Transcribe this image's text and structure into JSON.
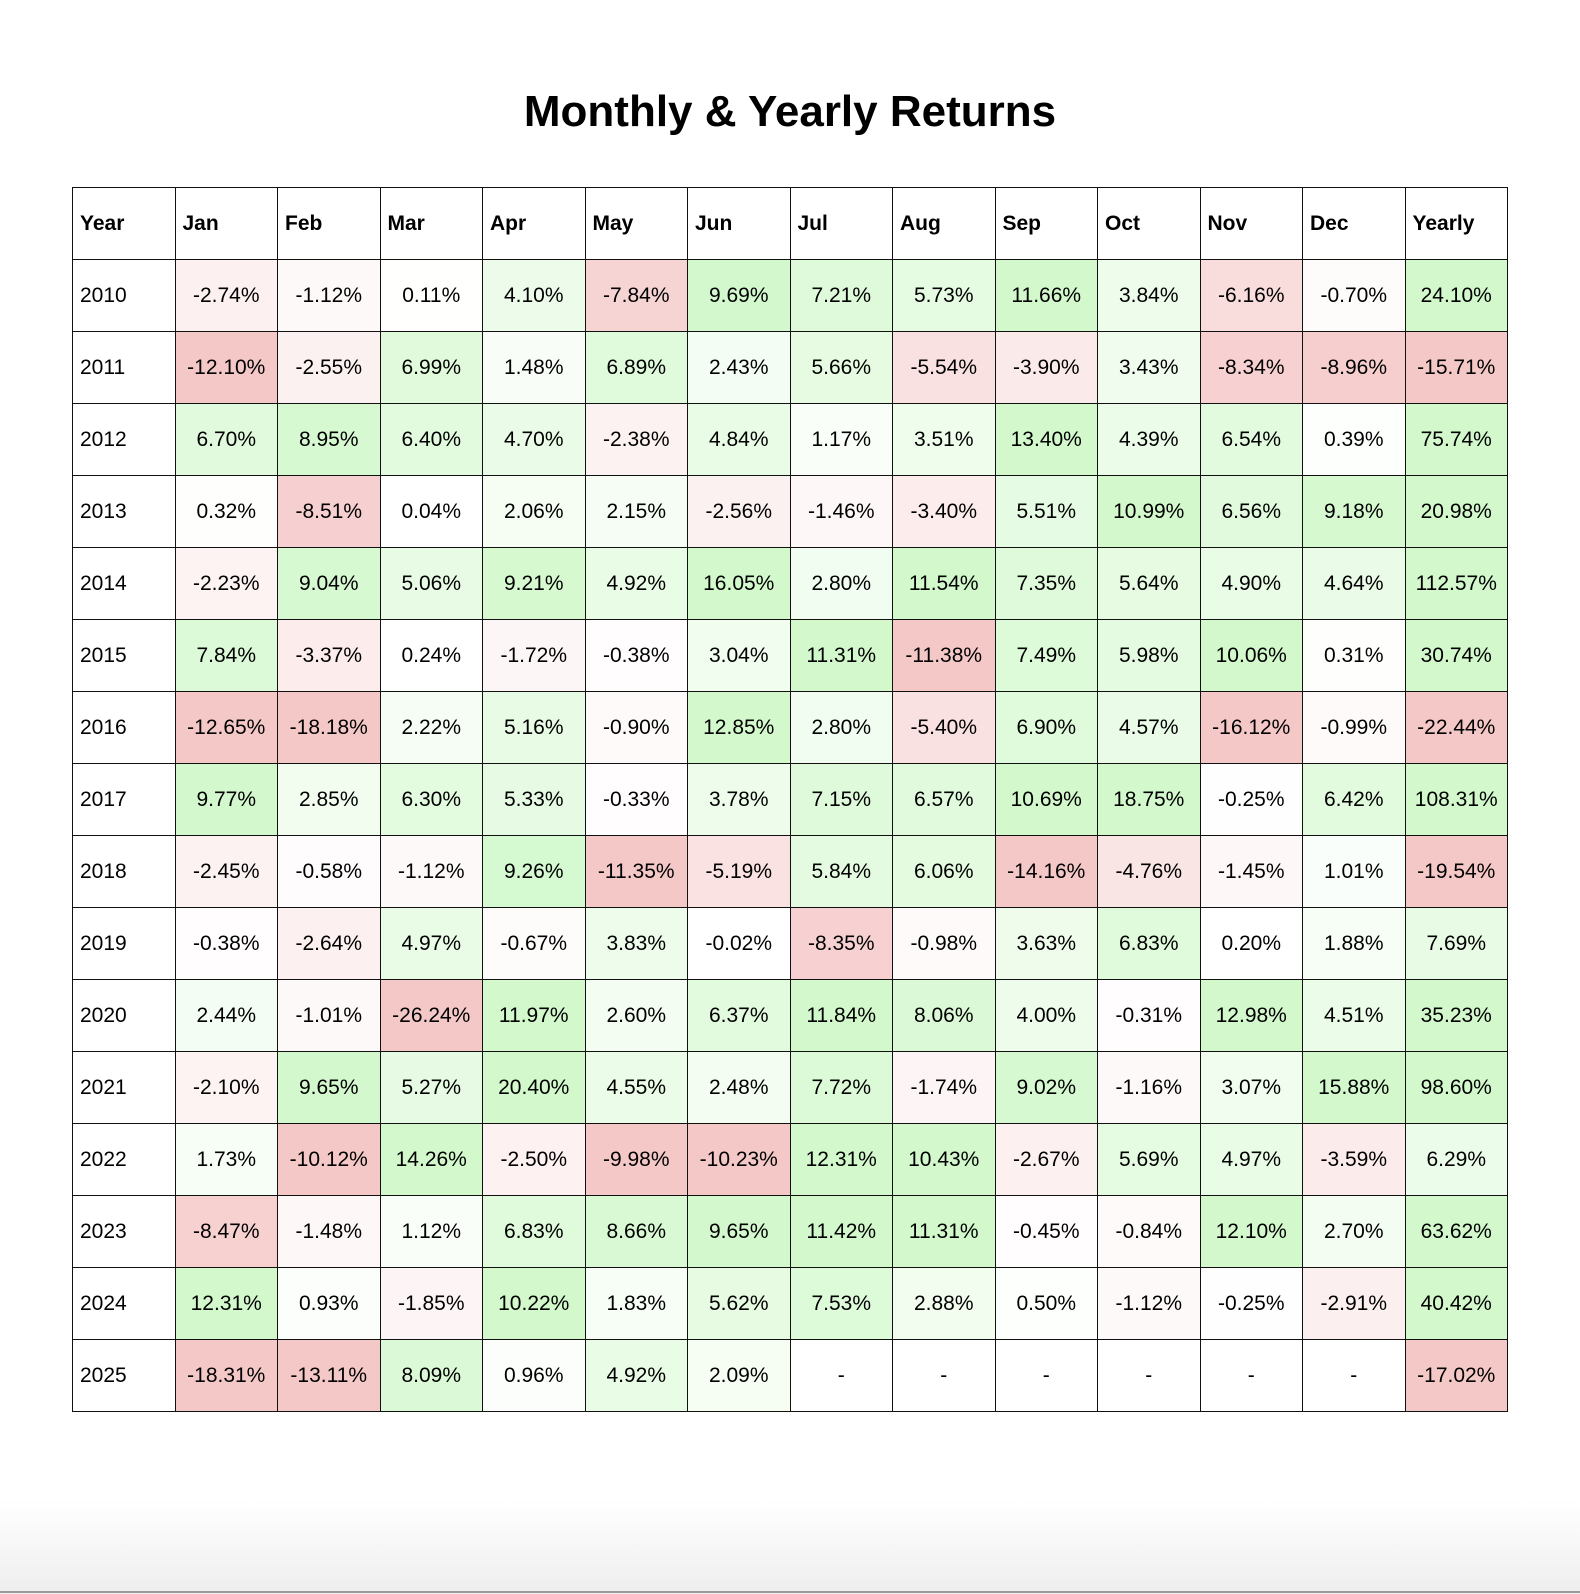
{
  "chart_data": {
    "type": "table",
    "title": "Monthly & Yearly Returns",
    "columns": [
      "Year",
      "Jan",
      "Feb",
      "Mar",
      "Apr",
      "May",
      "Jun",
      "Jul",
      "Aug",
      "Sep",
      "Oct",
      "Nov",
      "Dec",
      "Yearly"
    ],
    "rows": [
      {
        "year": "2010",
        "values": [
          "-2.74%",
          "-1.12%",
          "0.11%",
          "4.10%",
          "-7.84%",
          "9.69%",
          "7.21%",
          "5.73%",
          "11.66%",
          "3.84%",
          "-6.16%",
          "-0.70%",
          "24.10%"
        ]
      },
      {
        "year": "2011",
        "values": [
          "-12.10%",
          "-2.55%",
          "6.99%",
          "1.48%",
          "6.89%",
          "2.43%",
          "5.66%",
          "-5.54%",
          "-3.90%",
          "3.43%",
          "-8.34%",
          "-8.96%",
          "-15.71%"
        ]
      },
      {
        "year": "2012",
        "values": [
          "6.70%",
          "8.95%",
          "6.40%",
          "4.70%",
          "-2.38%",
          "4.84%",
          "1.17%",
          "3.51%",
          "13.40%",
          "4.39%",
          "6.54%",
          "0.39%",
          "75.74%"
        ]
      },
      {
        "year": "2013",
        "values": [
          "0.32%",
          "-8.51%",
          "0.04%",
          "2.06%",
          "2.15%",
          "-2.56%",
          "-1.46%",
          "-3.40%",
          "5.51%",
          "10.99%",
          "6.56%",
          "9.18%",
          "20.98%"
        ]
      },
      {
        "year": "2014",
        "values": [
          "-2.23%",
          "9.04%",
          "5.06%",
          "9.21%",
          "4.92%",
          "16.05%",
          "2.80%",
          "11.54%",
          "7.35%",
          "5.64%",
          "4.90%",
          "4.64%",
          "112.57%"
        ]
      },
      {
        "year": "2015",
        "values": [
          "7.84%",
          "-3.37%",
          "0.24%",
          "-1.72%",
          "-0.38%",
          "3.04%",
          "11.31%",
          "-11.38%",
          "7.49%",
          "5.98%",
          "10.06%",
          "0.31%",
          "30.74%"
        ]
      },
      {
        "year": "2016",
        "values": [
          "-12.65%",
          "-18.18%",
          "2.22%",
          "5.16%",
          "-0.90%",
          "12.85%",
          "2.80%",
          "-5.40%",
          "6.90%",
          "4.57%",
          "-16.12%",
          "-0.99%",
          "-22.44%"
        ]
      },
      {
        "year": "2017",
        "values": [
          "9.77%",
          "2.85%",
          "6.30%",
          "5.33%",
          "-0.33%",
          "3.78%",
          "7.15%",
          "6.57%",
          "10.69%",
          "18.75%",
          "-0.25%",
          "6.42%",
          "108.31%"
        ]
      },
      {
        "year": "2018",
        "values": [
          "-2.45%",
          "-0.58%",
          "-1.12%",
          "9.26%",
          "-11.35%",
          "-5.19%",
          "5.84%",
          "6.06%",
          "-14.16%",
          "-4.76%",
          "-1.45%",
          "1.01%",
          "-19.54%"
        ]
      },
      {
        "year": "2019",
        "values": [
          "-0.38%",
          "-2.64%",
          "4.97%",
          "-0.67%",
          "3.83%",
          "-0.02%",
          "-8.35%",
          "-0.98%",
          "3.63%",
          "6.83%",
          "0.20%",
          "1.88%",
          "7.69%"
        ]
      },
      {
        "year": "2020",
        "values": [
          "2.44%",
          "-1.01%",
          "-26.24%",
          "11.97%",
          "2.60%",
          "6.37%",
          "11.84%",
          "8.06%",
          "4.00%",
          "-0.31%",
          "12.98%",
          "4.51%",
          "35.23%"
        ]
      },
      {
        "year": "2021",
        "values": [
          "-2.10%",
          "9.65%",
          "5.27%",
          "20.40%",
          "4.55%",
          "2.48%",
          "7.72%",
          "-1.74%",
          "9.02%",
          "-1.16%",
          "3.07%",
          "15.88%",
          "98.60%"
        ]
      },
      {
        "year": "2022",
        "values": [
          "1.73%",
          "-10.12%",
          "14.26%",
          "-2.50%",
          "-9.98%",
          "-10.23%",
          "12.31%",
          "10.43%",
          "-2.67%",
          "5.69%",
          "4.97%",
          "-3.59%",
          "6.29%"
        ]
      },
      {
        "year": "2023",
        "values": [
          "-8.47%",
          "-1.48%",
          "1.12%",
          "6.83%",
          "8.66%",
          "9.65%",
          "11.42%",
          "11.31%",
          "-0.45%",
          "-0.84%",
          "12.10%",
          "2.70%",
          "63.62%"
        ]
      },
      {
        "year": "2024",
        "values": [
          "12.31%",
          "0.93%",
          "-1.85%",
          "10.22%",
          "1.83%",
          "5.62%",
          "7.53%",
          "2.88%",
          "0.50%",
          "-1.12%",
          "-0.25%",
          "-2.91%",
          "40.42%"
        ]
      },
      {
        "year": "2025",
        "values": [
          "-18.31%",
          "-13.11%",
          "8.09%",
          "0.96%",
          "4.92%",
          "2.09%",
          "-",
          "-",
          "-",
          "-",
          "-",
          "-",
          "-17.02%"
        ]
      }
    ],
    "colors": {
      "positive_max": "#d2f8cc",
      "negative_max": "#f5c8c8",
      "neutral": "#ffffff"
    },
    "grid": true
  }
}
